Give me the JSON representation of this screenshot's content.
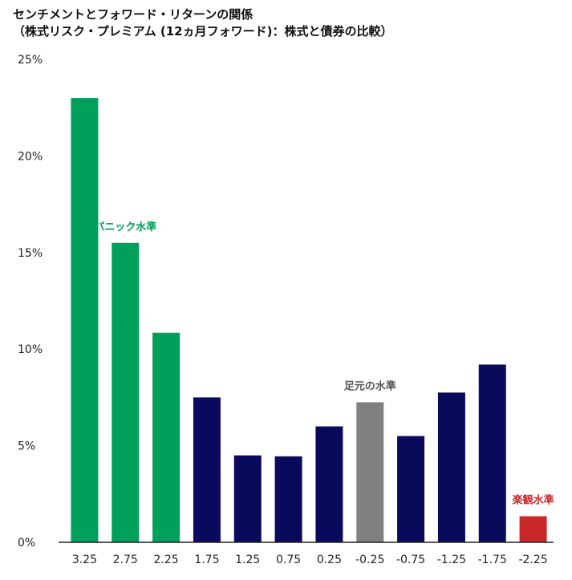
{
  "title_line1": "センチメントとフォワード・リターンの関係",
  "title_line2": "（株式リスク・プレミアム (12ヵ月フォワード)：株式と債券の比較）",
  "chart_data": {
    "type": "bar",
    "categories": [
      "3.25",
      "2.75",
      "2.25",
      "1.75",
      "1.25",
      "0.75",
      "0.25",
      "-0.25",
      "-0.75",
      "-1.25",
      "-1.75",
      "-2.25"
    ],
    "values": [
      23.0,
      15.5,
      10.85,
      7.5,
      4.5,
      4.45,
      6.0,
      7.25,
      5.5,
      7.75,
      9.2,
      1.35
    ],
    "colors": [
      "#00a05a",
      "#00a05a",
      "#00a05a",
      "#0a0a5c",
      "#0a0a5c",
      "#0a0a5c",
      "#0a0a5c",
      "#808080",
      "#0a0a5c",
      "#0a0a5c",
      "#0a0a5c",
      "#c8282a"
    ],
    "ylim": [
      0,
      25
    ],
    "yticks": [
      0,
      5,
      10,
      15,
      20,
      25
    ],
    "ytick_labels": [
      "0%",
      "5%",
      "10%",
      "15%",
      "20%",
      "25%"
    ],
    "grid": false,
    "annotations": [
      {
        "text": "パニック水準",
        "category_index": 1,
        "color": "#00a05a"
      },
      {
        "text": "足元の水準",
        "category_index": 7,
        "color": "#555555"
      },
      {
        "text": "楽観水準",
        "category_index": 11,
        "color": "#c8282a"
      }
    ]
  }
}
